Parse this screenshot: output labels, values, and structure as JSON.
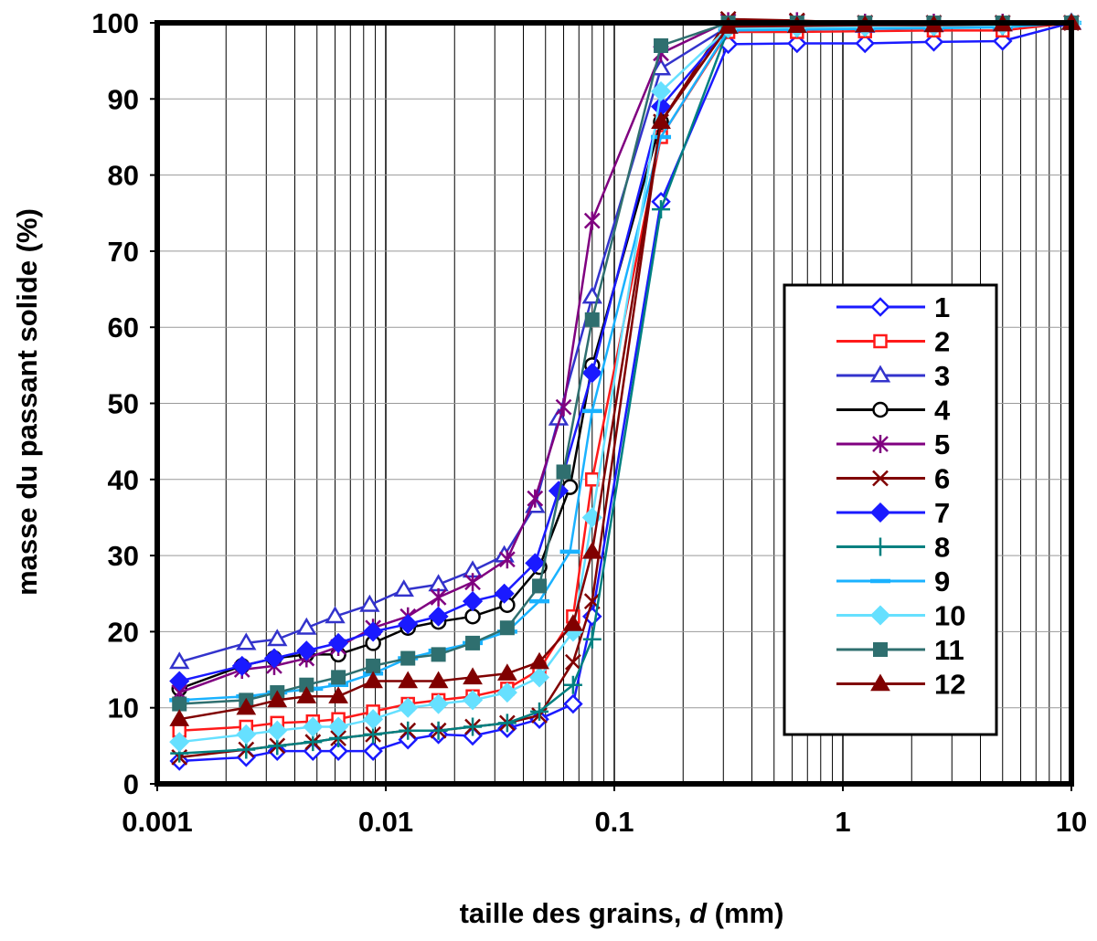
{
  "chart_data": {
    "type": "scatter",
    "title": "",
    "xlabel": "taille des grains, ",
    "xlabel_italic": "d",
    "xlabel_unit": " (mm)",
    "ylabel": "masse du passant solide (%)",
    "x_scale": "log",
    "xlim": [
      0.001,
      10
    ],
    "ylim": [
      0,
      100
    ],
    "x_ticks": [
      "0.001",
      "0.01",
      "0.1",
      "1",
      "10"
    ],
    "y_ticks": [
      "0",
      "10",
      "20",
      "30",
      "40",
      "50",
      "60",
      "70",
      "80",
      "90",
      "100"
    ],
    "grid": true,
    "legend_position": "right",
    "series": [
      {
        "name": "1",
        "color": "#1a1aff",
        "marker": "diamond-open",
        "x": [
          0.00125,
          0.00245,
          0.00335,
          0.0048,
          0.0062,
          0.0088,
          0.0125,
          0.017,
          0.024,
          0.034,
          0.047,
          0.066,
          0.08,
          0.16,
          0.315,
          0.63,
          1.25,
          2.5,
          5,
          10
        ],
        "y": [
          3,
          3.5,
          4.3,
          4.3,
          4.3,
          4.3,
          5.8,
          6.5,
          6.3,
          7.3,
          8.5,
          10.5,
          22,
          76.5,
          97.2,
          97.3,
          97.3,
          97.5,
          97.6,
          100
        ]
      },
      {
        "name": "2",
        "color": "#ff1a1a",
        "marker": "square-open",
        "x": [
          0.00125,
          0.00245,
          0.00335,
          0.0048,
          0.0062,
          0.0088,
          0.0125,
          0.017,
          0.024,
          0.034,
          0.047,
          0.066,
          0.08,
          0.16,
          0.315,
          0.63,
          1.25,
          2.5,
          5,
          10
        ],
        "y": [
          7,
          7.5,
          8,
          8.2,
          8.5,
          9.5,
          10.5,
          11,
          11.5,
          12.5,
          15,
          22,
          40,
          85,
          98.8,
          98.8,
          98.9,
          99,
          99,
          100
        ]
      },
      {
        "name": "3",
        "color": "#3333cc",
        "marker": "triangle-open",
        "x": [
          0.00125,
          0.00245,
          0.00335,
          0.0045,
          0.006,
          0.0085,
          0.012,
          0.017,
          0.024,
          0.033,
          0.045,
          0.057,
          0.08,
          0.16,
          0.315,
          0.63,
          1.25,
          2.5,
          5,
          10
        ],
        "y": [
          16,
          18.5,
          19,
          20.5,
          22,
          23.5,
          25.5,
          26.2,
          28,
          30,
          36.5,
          48,
          64,
          94,
          99.5,
          99.6,
          99.6,
          99.7,
          99.8,
          100
        ]
      },
      {
        "name": "4",
        "color": "#000000",
        "marker": "circle-open",
        "x": [
          0.00125,
          0.00235,
          0.00325,
          0.0045,
          0.0062,
          0.0088,
          0.0125,
          0.017,
          0.024,
          0.034,
          0.047,
          0.064,
          0.08,
          0.16,
          0.315,
          0.63,
          1.25,
          2.5,
          5,
          10
        ],
        "y": [
          12.5,
          15.5,
          16.5,
          17,
          17,
          18.5,
          20.5,
          21.3,
          22,
          23.5,
          28.5,
          39,
          55,
          87,
          99.5,
          99.6,
          99.6,
          99.7,
          99.8,
          100
        ]
      },
      {
        "name": "5",
        "color": "#800080",
        "marker": "asterisk",
        "x": [
          0.00125,
          0.00235,
          0.00325,
          0.0045,
          0.0062,
          0.0088,
          0.0125,
          0.017,
          0.024,
          0.034,
          0.045,
          0.06,
          0.08,
          0.16,
          0.315,
          0.63,
          1.25,
          2.5,
          5,
          10
        ],
        "y": [
          12,
          15,
          15.5,
          16.5,
          18,
          20.5,
          22,
          24.5,
          26.5,
          29.5,
          37.5,
          49.5,
          74,
          96,
          100.2,
          100.2,
          100,
          100,
          100,
          100
        ]
      },
      {
        "name": "6",
        "color": "#800000",
        "marker": "x",
        "x": [
          0.00125,
          0.00245,
          0.00335,
          0.0048,
          0.0062,
          0.0088,
          0.0125,
          0.017,
          0.024,
          0.034,
          0.047,
          0.066,
          0.08,
          0.16,
          0.315,
          0.63,
          1.25,
          2.5,
          5,
          10
        ],
        "y": [
          3.5,
          4.5,
          5,
          5.5,
          6,
          6.5,
          7,
          7,
          7.5,
          8,
          9,
          16,
          24,
          87,
          100.5,
          100.3,
          100,
          100,
          100,
          100
        ]
      },
      {
        "name": "7",
        "color": "#1a1aff",
        "marker": "diamond-filled",
        "x": [
          0.00125,
          0.00235,
          0.00325,
          0.0045,
          0.0062,
          0.0088,
          0.0125,
          0.017,
          0.024,
          0.033,
          0.045,
          0.057,
          0.08,
          0.16,
          0.315,
          0.63,
          1.25,
          2.5,
          5,
          10
        ],
        "y": [
          13.5,
          15.5,
          16.5,
          17.5,
          18.5,
          20,
          21,
          22,
          24,
          25,
          29,
          38.5,
          54,
          89,
          99.3,
          99.4,
          99.5,
          99.6,
          99.7,
          100
        ]
      },
      {
        "name": "8",
        "color": "#008080",
        "marker": "plus",
        "x": [
          0.00125,
          0.00245,
          0.00335,
          0.0048,
          0.0062,
          0.0088,
          0.0125,
          0.017,
          0.024,
          0.034,
          0.047,
          0.066,
          0.08,
          0.16,
          0.315,
          0.63,
          1.25,
          2.5,
          5,
          10
        ],
        "y": [
          4,
          4.5,
          5,
          5.5,
          6,
          6.5,
          7,
          7,
          7.5,
          8,
          9.5,
          13,
          19,
          75.5,
          99.2,
          99.3,
          99.4,
          99.5,
          99.6,
          100
        ]
      },
      {
        "name": "9",
        "color": "#1ab2ff",
        "marker": "dash",
        "x": [
          0.00125,
          0.00245,
          0.00335,
          0.0048,
          0.0062,
          0.0088,
          0.0125,
          0.017,
          0.024,
          0.034,
          0.047,
          0.064,
          0.08,
          0.16,
          0.315,
          0.63,
          1.25,
          2.5,
          5,
          10
        ],
        "y": [
          11,
          11.5,
          12,
          12.5,
          13,
          14.5,
          16.5,
          17.5,
          18.5,
          20,
          24,
          30.5,
          49,
          85,
          99,
          99.1,
          99.2,
          99.3,
          99.4,
          100
        ]
      },
      {
        "name": "10",
        "color": "#66e0ff",
        "marker": "diamond-filled",
        "x": [
          0.00125,
          0.00245,
          0.00335,
          0.0048,
          0.0062,
          0.0088,
          0.0125,
          0.017,
          0.024,
          0.034,
          0.047,
          0.066,
          0.08,
          0.16,
          0.315,
          0.63,
          1.25,
          2.5,
          5,
          10
        ],
        "y": [
          5.5,
          6.5,
          7,
          7.5,
          7.5,
          8.5,
          10,
          10.5,
          11,
          12,
          14,
          20,
          35,
          91,
          99.3,
          99.4,
          99.5,
          99.6,
          99.7,
          100
        ]
      },
      {
        "name": "11",
        "color": "#2f6f6f",
        "marker": "square-filled",
        "x": [
          0.00125,
          0.00245,
          0.00335,
          0.0045,
          0.0062,
          0.0088,
          0.0125,
          0.017,
          0.024,
          0.034,
          0.047,
          0.06,
          0.08,
          0.16,
          0.315,
          0.63,
          1.25,
          2.5,
          5,
          10
        ],
        "y": [
          10.5,
          11,
          12,
          13,
          14,
          15.5,
          16.5,
          17,
          18.5,
          20.5,
          26,
          41,
          61,
          97,
          100,
          100,
          100,
          100,
          100,
          100
        ]
      },
      {
        "name": "12",
        "color": "#800000",
        "marker": "triangle-filled",
        "x": [
          0.00125,
          0.00245,
          0.00335,
          0.0045,
          0.0062,
          0.0088,
          0.0125,
          0.017,
          0.024,
          0.034,
          0.047,
          0.066,
          0.08,
          0.16,
          0.315,
          0.63,
          1.25,
          2.5,
          5,
          10
        ],
        "y": [
          8.5,
          10,
          11,
          11.5,
          11.5,
          13.5,
          13.5,
          13.5,
          14,
          14.5,
          16,
          21,
          30.5,
          87,
          99.5,
          99.6,
          99.7,
          99.7,
          99.8,
          100
        ]
      }
    ]
  }
}
